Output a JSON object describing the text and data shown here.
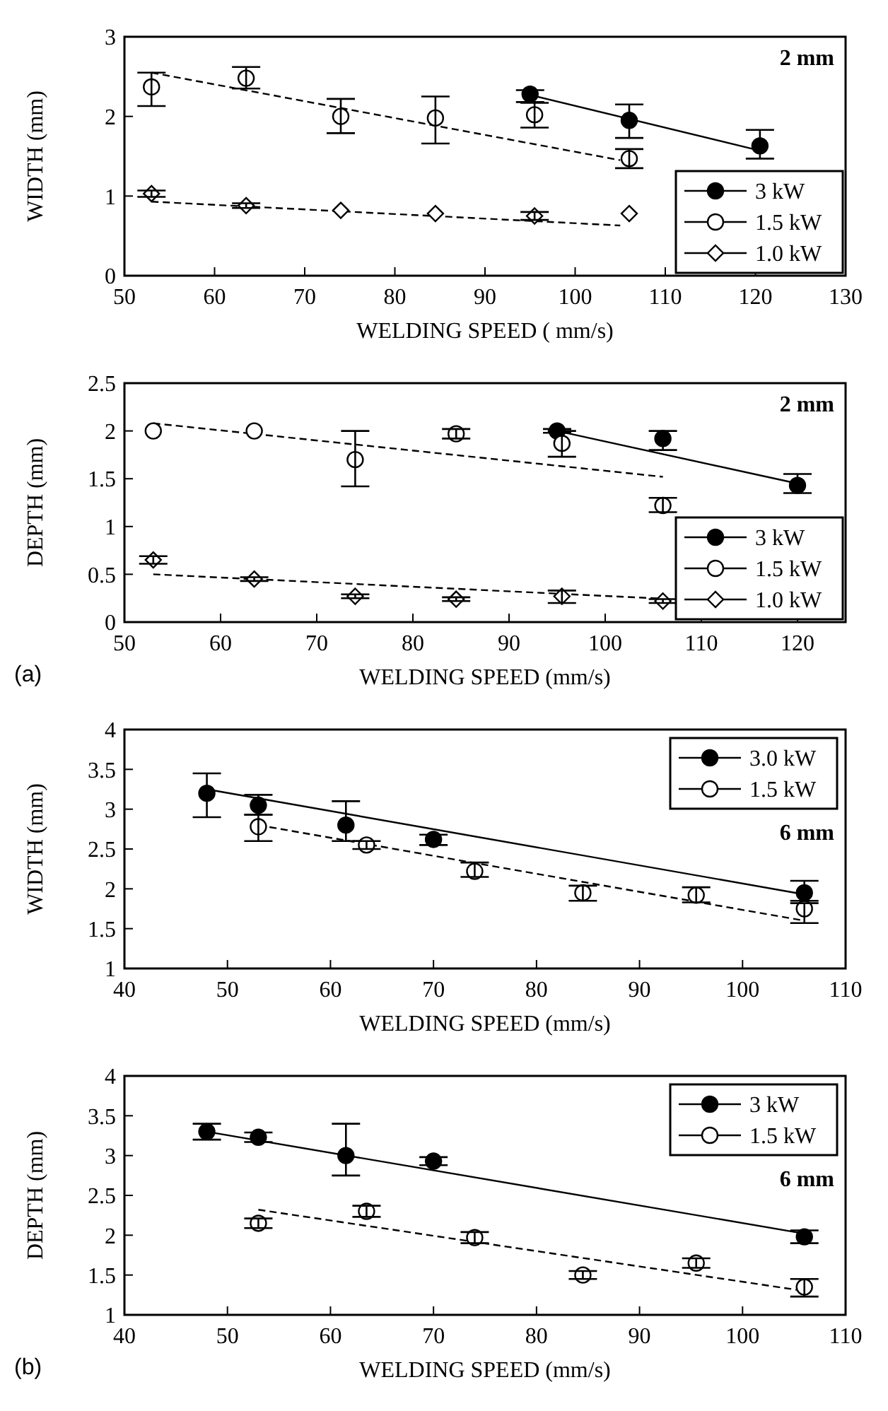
{
  "chart_data": [
    {
      "type": "scatter",
      "xlabel": "WELDING SPEED ( mm/s)",
      "ylabel": "WIDTH (mm)",
      "xlim": [
        50,
        130
      ],
      "xticks": [
        50,
        60,
        70,
        80,
        90,
        100,
        110,
        120,
        130
      ],
      "ylim": [
        0,
        3
      ],
      "yticks": [
        0,
        1,
        2,
        3
      ],
      "grid": false,
      "legend": "bottom right",
      "annotations": [
        "2 mm"
      ],
      "series": [
        {
          "name": "3 kW",
          "color": "#000000",
          "marker": "circle",
          "x": [
            95,
            106,
            120.5
          ],
          "values": [
            2.28,
            1.95,
            1.63
          ],
          "errors": [
            [
              2.18,
              2.33
            ],
            [
              1.73,
              2.15
            ],
            [
              1.47,
              1.83
            ]
          ]
        },
        {
          "name": "1.5 kW",
          "color": "#000000",
          "marker": "circle",
          "x": [
            53,
            63.5,
            74,
            84.5,
            95.5,
            106
          ],
          "values": [
            2.37,
            2.48,
            2.0,
            1.98,
            2.02,
            1.47
          ],
          "errors": [
            [
              2.13,
              2.55
            ],
            [
              2.35,
              2.62
            ],
            [
              1.79,
              2.22
            ],
            [
              1.66,
              2.25
            ],
            [
              1.86,
              2.17
            ],
            [
              1.35,
              1.59
            ]
          ]
        },
        {
          "name": "1.0 kW",
          "color": "#000000",
          "marker": "diamond",
          "x": [
            53,
            63.5,
            74,
            84.5,
            95.5,
            106
          ],
          "values": [
            1.03,
            0.88,
            0.82,
            0.78,
            0.75,
            0.78
          ],
          "errors": [
            0.04,
            0.03,
            null,
            null,
            0.05,
            null
          ]
        },
        {
          "type": "line",
          "color": "#000000",
          "line_style": "solid",
          "x": [
            95,
            120.5
          ],
          "values": [
            2.27,
            1.57
          ]
        },
        {
          "type": "line",
          "color": "#000000",
          "line_style": "dashed",
          "x": [
            53,
            105
          ],
          "values": [
            2.55,
            1.45
          ]
        },
        {
          "type": "line",
          "color": "#000000",
          "line_style": "dashed",
          "x": [
            53,
            105
          ],
          "values": [
            0.93,
            0.63
          ]
        }
      ]
    },
    {
      "type": "scatter",
      "xlabel": "WELDING SPEED (mm/s)",
      "ylabel": "DEPTH (mm)",
      "xlim": [
        50,
        125
      ],
      "xticks": [
        50,
        60,
        70,
        80,
        90,
        100,
        110,
        120
      ],
      "ylim": [
        0,
        2.5
      ],
      "yticks": [
        0,
        0.5,
        1,
        1.5,
        2,
        2.5
      ],
      "grid": false,
      "legend": "bottom right",
      "annotations": [
        "2 mm",
        "(a)"
      ],
      "series": [
        {
          "name": "3 kW",
          "color": "#000000",
          "marker": "circle",
          "x": [
            95,
            106,
            120
          ],
          "values": [
            2.0,
            1.92,
            1.43
          ],
          "errors": [
            0.02,
            [
              1.8,
              2.0
            ],
            [
              1.35,
              1.55
            ]
          ]
        },
        {
          "name": "1.5 kW",
          "color": "#000000",
          "marker": "circle",
          "x": [
            53,
            63.5,
            74,
            84.5,
            95.5,
            106
          ],
          "values": [
            2.0,
            2.0,
            1.7,
            1.97,
            1.87,
            1.22
          ],
          "errors": [
            null,
            null,
            [
              1.42,
              2.0
            ],
            [
              1.92,
              2.02
            ],
            [
              1.73,
              2.0
            ],
            [
              1.15,
              1.3
            ]
          ]
        },
        {
          "name": "1.0 kW",
          "color": "#000000",
          "marker": "diamond",
          "x": [
            53,
            63.5,
            74,
            84.5,
            95.5,
            106
          ],
          "values": [
            0.65,
            0.45,
            0.27,
            0.24,
            0.27,
            0.22
          ],
          "errors": [
            0.04,
            0.02,
            0.02,
            0.02,
            [
              0.2,
              0.33
            ],
            0.02
          ]
        },
        {
          "type": "line",
          "color": "#000000",
          "line_style": "solid",
          "x": [
            95,
            120
          ],
          "values": [
            2.0,
            1.45
          ]
        },
        {
          "type": "line",
          "color": "#000000",
          "line_style": "dashed",
          "x": [
            53,
            106
          ],
          "values": [
            2.08,
            1.52
          ]
        },
        {
          "type": "line",
          "color": "#000000",
          "line_style": "dashed",
          "x": [
            53,
            107
          ],
          "values": [
            0.5,
            0.24
          ]
        }
      ]
    },
    {
      "type": "scatter",
      "xlabel": "WELDING SPEED (mm/s)",
      "ylabel": "WIDTH (mm)",
      "xlim": [
        40,
        110
      ],
      "xticks": [
        40,
        50,
        60,
        70,
        80,
        90,
        100,
        110
      ],
      "ylim": [
        1,
        4
      ],
      "yticks": [
        1,
        1.5,
        2,
        2.5,
        3,
        3.5,
        4
      ],
      "grid": false,
      "legend": "top right",
      "annotations": [
        "6 mm"
      ],
      "series": [
        {
          "name": "3.0 kW",
          "color": "#000000",
          "marker": "circle",
          "x": [
            48,
            53,
            61.5,
            70,
            106
          ],
          "values": [
            3.2,
            3.05,
            2.8,
            2.62,
            1.95
          ],
          "errors": [
            [
              2.9,
              3.45
            ],
            [
              2.93,
              3.18
            ],
            [
              2.6,
              3.1
            ],
            [
              2.55,
              2.68
            ],
            [
              1.85,
              2.1
            ]
          ]
        },
        {
          "name": "1.5 kW",
          "color": "#000000",
          "marker": "circle",
          "x": [
            53,
            63.5,
            74,
            84.5,
            95.5,
            106
          ],
          "values": [
            2.78,
            2.55,
            2.22,
            1.95,
            1.92,
            1.75
          ],
          "errors": [
            [
              2.6,
              2.93
            ],
            [
              2.5,
              2.6
            ],
            [
              2.15,
              2.33
            ],
            [
              1.85,
              2.04
            ],
            [
              1.83,
              2.02
            ],
            [
              1.57,
              1.82
            ]
          ]
        },
        {
          "type": "line",
          "color": "#000000",
          "line_style": "solid",
          "x": [
            48,
            106
          ],
          "values": [
            3.25,
            1.93
          ]
        },
        {
          "type": "line",
          "color": "#000000",
          "line_style": "dashed",
          "x": [
            53,
            106
          ],
          "values": [
            2.8,
            1.6
          ]
        }
      ]
    },
    {
      "type": "scatter",
      "xlabel": "WELDING SPEED (mm/s)",
      "ylabel": "DEPTH (mm)",
      "xlim": [
        40,
        110
      ],
      "xticks": [
        40,
        50,
        60,
        70,
        80,
        90,
        100,
        110
      ],
      "ylim": [
        1,
        4
      ],
      "yticks": [
        1,
        1.5,
        2,
        2.5,
        3,
        3.5,
        4
      ],
      "grid": false,
      "legend": "top right",
      "annotations": [
        "6 mm",
        "(b)"
      ],
      "series": [
        {
          "name": "3 kW",
          "color": "#000000",
          "marker": "circle",
          "x": [
            48,
            53,
            61.5,
            70,
            106
          ],
          "values": [
            3.3,
            3.23,
            3.0,
            2.93,
            1.98
          ],
          "errors": [
            0.1,
            0.06,
            [
              2.75,
              3.4
            ],
            0.05,
            0.08
          ]
        },
        {
          "name": "1.5 kW",
          "color": "#000000",
          "marker": "circle",
          "x": [
            53,
            63.5,
            74,
            84.5,
            95.5,
            106
          ],
          "values": [
            2.15,
            2.3,
            1.97,
            1.5,
            1.65,
            1.35
          ],
          "errors": [
            0.06,
            0.07,
            0.07,
            0.05,
            0.06,
            [
              1.23,
              1.45
            ]
          ]
        },
        {
          "type": "line",
          "color": "#000000",
          "line_style": "solid",
          "x": [
            48,
            106
          ],
          "values": [
            3.3,
            2.02
          ]
        },
        {
          "type": "line",
          "color": "#000000",
          "line_style": "dashed",
          "x": [
            53,
            106
          ],
          "values": [
            2.32,
            1.3
          ]
        }
      ]
    }
  ]
}
